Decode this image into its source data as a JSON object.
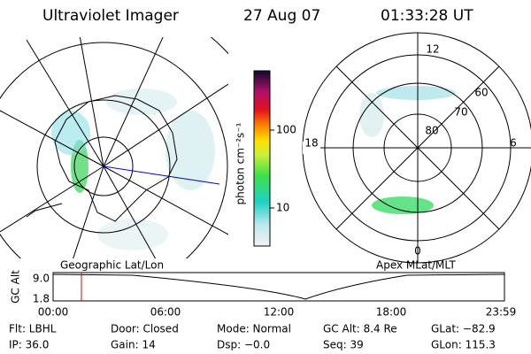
{
  "header": {
    "title": "Ultraviolet Imager",
    "date": "27 Aug 07",
    "time": "01:33:28 UT"
  },
  "colorbar": {
    "label": "photon cm⁻²s⁻¹",
    "ticks": [
      "100",
      "10"
    ]
  },
  "polar": {
    "mlt": [
      "12",
      "18",
      "6",
      "0"
    ],
    "mlat": [
      "80",
      "70",
      "60"
    ]
  },
  "maps": {
    "left": "Geographic Lat/Lon",
    "right": "Apex MLat/MLT"
  },
  "altitude": {
    "label": "GC Alt",
    "yticks": [
      "9.0",
      "1.8"
    ],
    "xticks": [
      "00:00",
      "06:00",
      "12:00",
      "18:00",
      "23:59"
    ]
  },
  "info": [
    [
      "Flt: LBHL",
      "Door: Closed",
      "Mode: Normal",
      "GC Alt: 8.4 Re",
      "GLat: −82.9"
    ],
    [
      "IP: 36.0",
      "Gain: 14",
      "Dsp:  −0.0",
      "Seq: 39",
      "GLon: 115.3"
    ]
  ]
}
